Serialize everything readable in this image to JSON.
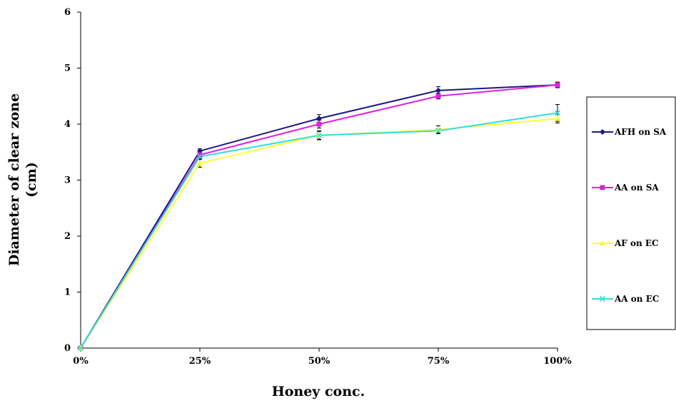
{
  "chart_data": {
    "type": "line",
    "title": "",
    "xlabel": "Honey conc.",
    "ylabel": "Diameter of clear zone (cm)",
    "ylabel_lines": [
      "Diameter of clear zone",
      "(cm)"
    ],
    "categories": [
      "0%",
      "25%",
      "50%",
      "75%",
      "100%"
    ],
    "ylim": [
      0,
      6
    ],
    "yticks": [
      0,
      1,
      2,
      3,
      4,
      5,
      6
    ],
    "ytick_labels": [
      "0",
      "1",
      "2",
      "3",
      "4",
      "5",
      "6"
    ],
    "grid": false,
    "legend_position": "right",
    "series": [
      {
        "name": "AFH on SA",
        "color": "#1a1a80",
        "marker": "diamond",
        "values": [
          0,
          3.52,
          4.1,
          4.6,
          4.7
        ],
        "errors": [
          0,
          0.04,
          0.07,
          0.07,
          0.05
        ]
      },
      {
        "name": "AA on SA",
        "color": "#e020e0",
        "marker": "square",
        "values": [
          0,
          3.45,
          4.0,
          4.5,
          4.7
        ],
        "errors": [
          0,
          0.04,
          0.07,
          0.05,
          0.05
        ]
      },
      {
        "name": "AF on EC",
        "color": "#ffff33",
        "marker": "triangle",
        "values": [
          0,
          3.3,
          3.8,
          3.9,
          4.1
        ],
        "errors": [
          0,
          0.07,
          0.07,
          0.07,
          0.08
        ]
      },
      {
        "name": "AA on EC",
        "color": "#33dddd",
        "marker": "x",
        "values": [
          0,
          3.42,
          3.8,
          3.88,
          4.2
        ],
        "errors": [
          0,
          0.04,
          0.08,
          0.04,
          0.15
        ]
      }
    ]
  }
}
